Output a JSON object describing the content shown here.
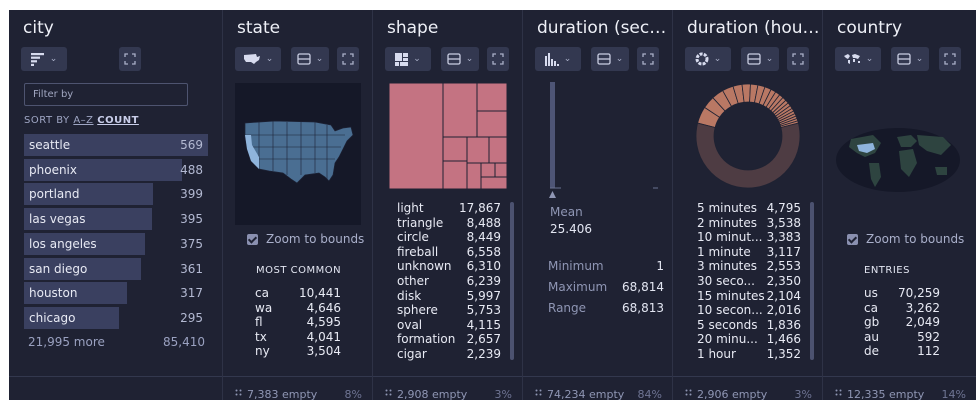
{
  "columns": {
    "city": {
      "title": "city",
      "filter_placeholder": "Filter by",
      "sort_by_label": "SORT BY",
      "sort_az": "A–Z",
      "sort_count": "COUNT",
      "rows": [
        {
          "label": "seattle",
          "value": "569",
          "n": 569
        },
        {
          "label": "phoenix",
          "value": "488",
          "n": 488
        },
        {
          "label": "portland",
          "value": "399",
          "n": 399
        },
        {
          "label": "las vegas",
          "value": "395",
          "n": 395
        },
        {
          "label": "los angeles",
          "value": "375",
          "n": 375
        },
        {
          "label": "san diego",
          "value": "361",
          "n": 361
        },
        {
          "label": "houston",
          "value": "317",
          "n": 317
        },
        {
          "label": "chicago",
          "value": "295",
          "n": 295
        }
      ],
      "more_label": "21,995 more",
      "more_total": "85,410"
    },
    "state": {
      "title": "state",
      "zoom_label": "Zoom to bounds",
      "header": "MOST COMMON",
      "rows": [
        {
          "label": "ca",
          "value": "10,441"
        },
        {
          "label": "wa",
          "value": "4,646"
        },
        {
          "label": "fl",
          "value": "4,595"
        },
        {
          "label": "tx",
          "value": "4,041"
        },
        {
          "label": "ny",
          "value": "3,504"
        }
      ],
      "footer": "7,383 empty",
      "footer_pct": "8%"
    },
    "shape": {
      "title": "shape",
      "rows": [
        {
          "label": "light",
          "value": "17,867"
        },
        {
          "label": "triangle",
          "value": "8,488"
        },
        {
          "label": "circle",
          "value": "8,449"
        },
        {
          "label": "fireball",
          "value": "6,558"
        },
        {
          "label": "unknown",
          "value": "6,310"
        },
        {
          "label": "other",
          "value": "6,239"
        },
        {
          "label": "disk",
          "value": "5,997"
        },
        {
          "label": "sphere",
          "value": "5,753"
        },
        {
          "label": "oval",
          "value": "4,115"
        },
        {
          "label": "formation",
          "value": "2,657"
        },
        {
          "label": "cigar",
          "value": "2,239"
        }
      ],
      "footer": "2,908 empty",
      "footer_pct": "3%"
    },
    "duration_seconds": {
      "title": "duration (seco...",
      "mean_label": "Mean",
      "mean_value": "25.406",
      "stats": [
        {
          "label": "Minimum",
          "value": "1"
        },
        {
          "label": "Maximum",
          "value": "68,814"
        },
        {
          "label": "Range",
          "value": "68,813"
        }
      ],
      "footer": "74,234 empty",
      "footer_pct": "84%"
    },
    "duration_hours": {
      "title": "duration (hour...",
      "rows": [
        {
          "label": "5 minutes",
          "value": "4,795"
        },
        {
          "label": "2 minutes",
          "value": "3,538"
        },
        {
          "label": "10 minut...",
          "value": "3,383"
        },
        {
          "label": "1 minute",
          "value": "3,117"
        },
        {
          "label": "3 minutes",
          "value": "2,553"
        },
        {
          "label": "30 seco...",
          "value": "2,350"
        },
        {
          "label": "15 minutes",
          "value": "2,104"
        },
        {
          "label": "10 secon...",
          "value": "2,016"
        },
        {
          "label": "5 seconds",
          "value": "1,836"
        },
        {
          "label": "20 minu...",
          "value": "1,466"
        },
        {
          "label": "1 hour",
          "value": "1,352"
        }
      ],
      "footer": "2,906 empty",
      "footer_pct": "3%"
    },
    "country": {
      "title": "country",
      "zoom_label": "Zoom to bounds",
      "header": "ENTRIES",
      "rows": [
        {
          "label": "us",
          "value": "70,259"
        },
        {
          "label": "ca",
          "value": "3,262"
        },
        {
          "label": "gb",
          "value": "2,049"
        },
        {
          "label": "au",
          "value": "592"
        },
        {
          "label": "de",
          "value": "112"
        }
      ],
      "footer": "12,335 empty",
      "footer_pct": "14%"
    }
  },
  "icons": {
    "list_view": "bar-list-icon",
    "map_view": "map-icon",
    "treemap_view": "treemap-icon",
    "histogram_view": "histogram-icon",
    "donut_view": "donut-icon",
    "world_view": "world-map-icon",
    "column_type": "column-type-icon",
    "expand": "expand-icon",
    "empty": "empty-dots-icon"
  },
  "colors": {
    "background": "#1f2233",
    "bar": "#3a4060",
    "map_fill": "#4a6e92",
    "map_highlight": "#8fb4dc",
    "treemap": "#c47382",
    "donut": "#b97864",
    "donut_rest": "#4e3c43",
    "histogram": "#4e5576"
  }
}
